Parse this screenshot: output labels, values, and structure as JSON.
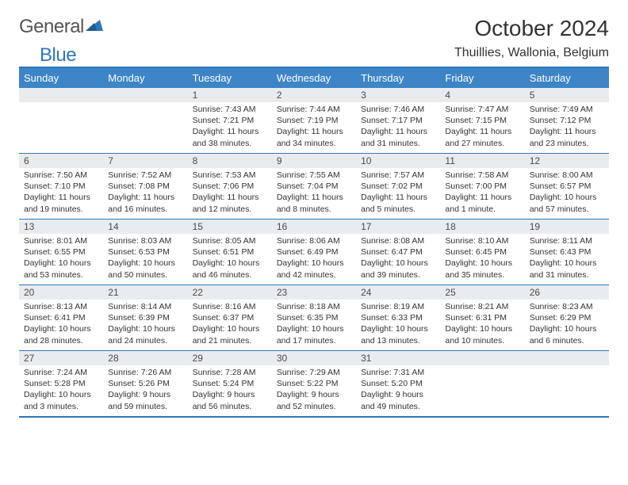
{
  "brand": {
    "word1": "General",
    "word2": "Blue"
  },
  "title": "October 2024",
  "location": "Thuillies, Wallonia, Belgium",
  "colors": {
    "header_bg": "#3D85C6",
    "header_text": "#ffffff",
    "border": "#2F76BA",
    "daynum_bg": "#E9ECEF",
    "text": "#333333",
    "brand_gray": "#555555",
    "brand_blue": "#2F76BA"
  },
  "typography": {
    "title_fontsize": 28,
    "location_fontsize": 16,
    "dayheader_fontsize": 13,
    "daynum_fontsize": 12,
    "body_fontsize": 10.5
  },
  "day_names": [
    "Sunday",
    "Monday",
    "Tuesday",
    "Wednesday",
    "Thursday",
    "Friday",
    "Saturday"
  ],
  "weeks": [
    [
      {
        "day": "",
        "sunrise": "",
        "sunset": "",
        "daylight": ""
      },
      {
        "day": "",
        "sunrise": "",
        "sunset": "",
        "daylight": ""
      },
      {
        "day": "1",
        "sunrise": "Sunrise: 7:43 AM",
        "sunset": "Sunset: 7:21 PM",
        "daylight": "Daylight: 11 hours and 38 minutes."
      },
      {
        "day": "2",
        "sunrise": "Sunrise: 7:44 AM",
        "sunset": "Sunset: 7:19 PM",
        "daylight": "Daylight: 11 hours and 34 minutes."
      },
      {
        "day": "3",
        "sunrise": "Sunrise: 7:46 AM",
        "sunset": "Sunset: 7:17 PM",
        "daylight": "Daylight: 11 hours and 31 minutes."
      },
      {
        "day": "4",
        "sunrise": "Sunrise: 7:47 AM",
        "sunset": "Sunset: 7:15 PM",
        "daylight": "Daylight: 11 hours and 27 minutes."
      },
      {
        "day": "5",
        "sunrise": "Sunrise: 7:49 AM",
        "sunset": "Sunset: 7:12 PM",
        "daylight": "Daylight: 11 hours and 23 minutes."
      }
    ],
    [
      {
        "day": "6",
        "sunrise": "Sunrise: 7:50 AM",
        "sunset": "Sunset: 7:10 PM",
        "daylight": "Daylight: 11 hours and 19 minutes."
      },
      {
        "day": "7",
        "sunrise": "Sunrise: 7:52 AM",
        "sunset": "Sunset: 7:08 PM",
        "daylight": "Daylight: 11 hours and 16 minutes."
      },
      {
        "day": "8",
        "sunrise": "Sunrise: 7:53 AM",
        "sunset": "Sunset: 7:06 PM",
        "daylight": "Daylight: 11 hours and 12 minutes."
      },
      {
        "day": "9",
        "sunrise": "Sunrise: 7:55 AM",
        "sunset": "Sunset: 7:04 PM",
        "daylight": "Daylight: 11 hours and 8 minutes."
      },
      {
        "day": "10",
        "sunrise": "Sunrise: 7:57 AM",
        "sunset": "Sunset: 7:02 PM",
        "daylight": "Daylight: 11 hours and 5 minutes."
      },
      {
        "day": "11",
        "sunrise": "Sunrise: 7:58 AM",
        "sunset": "Sunset: 7:00 PM",
        "daylight": "Daylight: 11 hours and 1 minute."
      },
      {
        "day": "12",
        "sunrise": "Sunrise: 8:00 AM",
        "sunset": "Sunset: 6:57 PM",
        "daylight": "Daylight: 10 hours and 57 minutes."
      }
    ],
    [
      {
        "day": "13",
        "sunrise": "Sunrise: 8:01 AM",
        "sunset": "Sunset: 6:55 PM",
        "daylight": "Daylight: 10 hours and 53 minutes."
      },
      {
        "day": "14",
        "sunrise": "Sunrise: 8:03 AM",
        "sunset": "Sunset: 6:53 PM",
        "daylight": "Daylight: 10 hours and 50 minutes."
      },
      {
        "day": "15",
        "sunrise": "Sunrise: 8:05 AM",
        "sunset": "Sunset: 6:51 PM",
        "daylight": "Daylight: 10 hours and 46 minutes."
      },
      {
        "day": "16",
        "sunrise": "Sunrise: 8:06 AM",
        "sunset": "Sunset: 6:49 PM",
        "daylight": "Daylight: 10 hours and 42 minutes."
      },
      {
        "day": "17",
        "sunrise": "Sunrise: 8:08 AM",
        "sunset": "Sunset: 6:47 PM",
        "daylight": "Daylight: 10 hours and 39 minutes."
      },
      {
        "day": "18",
        "sunrise": "Sunrise: 8:10 AM",
        "sunset": "Sunset: 6:45 PM",
        "daylight": "Daylight: 10 hours and 35 minutes."
      },
      {
        "day": "19",
        "sunrise": "Sunrise: 8:11 AM",
        "sunset": "Sunset: 6:43 PM",
        "daylight": "Daylight: 10 hours and 31 minutes."
      }
    ],
    [
      {
        "day": "20",
        "sunrise": "Sunrise: 8:13 AM",
        "sunset": "Sunset: 6:41 PM",
        "daylight": "Daylight: 10 hours and 28 minutes."
      },
      {
        "day": "21",
        "sunrise": "Sunrise: 8:14 AM",
        "sunset": "Sunset: 6:39 PM",
        "daylight": "Daylight: 10 hours and 24 minutes."
      },
      {
        "day": "22",
        "sunrise": "Sunrise: 8:16 AM",
        "sunset": "Sunset: 6:37 PM",
        "daylight": "Daylight: 10 hours and 21 minutes."
      },
      {
        "day": "23",
        "sunrise": "Sunrise: 8:18 AM",
        "sunset": "Sunset: 6:35 PM",
        "daylight": "Daylight: 10 hours and 17 minutes."
      },
      {
        "day": "24",
        "sunrise": "Sunrise: 8:19 AM",
        "sunset": "Sunset: 6:33 PM",
        "daylight": "Daylight: 10 hours and 13 minutes."
      },
      {
        "day": "25",
        "sunrise": "Sunrise: 8:21 AM",
        "sunset": "Sunset: 6:31 PM",
        "daylight": "Daylight: 10 hours and 10 minutes."
      },
      {
        "day": "26",
        "sunrise": "Sunrise: 8:23 AM",
        "sunset": "Sunset: 6:29 PM",
        "daylight": "Daylight: 10 hours and 6 minutes."
      }
    ],
    [
      {
        "day": "27",
        "sunrise": "Sunrise: 7:24 AM",
        "sunset": "Sunset: 5:28 PM",
        "daylight": "Daylight: 10 hours and 3 minutes."
      },
      {
        "day": "28",
        "sunrise": "Sunrise: 7:26 AM",
        "sunset": "Sunset: 5:26 PM",
        "daylight": "Daylight: 9 hours and 59 minutes."
      },
      {
        "day": "29",
        "sunrise": "Sunrise: 7:28 AM",
        "sunset": "Sunset: 5:24 PM",
        "daylight": "Daylight: 9 hours and 56 minutes."
      },
      {
        "day": "30",
        "sunrise": "Sunrise: 7:29 AM",
        "sunset": "Sunset: 5:22 PM",
        "daylight": "Daylight: 9 hours and 52 minutes."
      },
      {
        "day": "31",
        "sunrise": "Sunrise: 7:31 AM",
        "sunset": "Sunset: 5:20 PM",
        "daylight": "Daylight: 9 hours and 49 minutes."
      },
      {
        "day": "",
        "sunrise": "",
        "sunset": "",
        "daylight": ""
      },
      {
        "day": "",
        "sunrise": "",
        "sunset": "",
        "daylight": ""
      }
    ]
  ]
}
